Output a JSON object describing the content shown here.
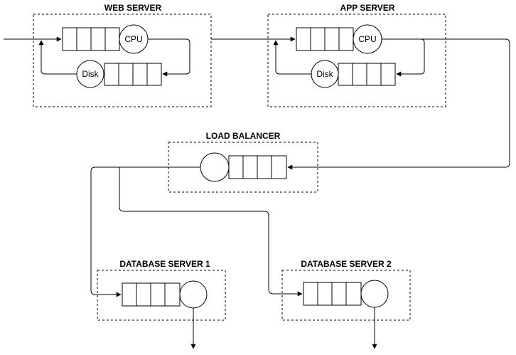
{
  "diagram": {
    "web_server": {
      "title": "WEB SERVER",
      "cpu": "CPU",
      "disk": "Disk"
    },
    "app_server": {
      "title": "APP SERVER",
      "cpu": "CPU",
      "disk": "Disk"
    },
    "load_balancer": {
      "title": "LOAD BALANCER"
    },
    "db1": {
      "title": "DATABASE SERVER 1"
    },
    "db2": {
      "title": "DATABASE SERVER 2"
    }
  }
}
